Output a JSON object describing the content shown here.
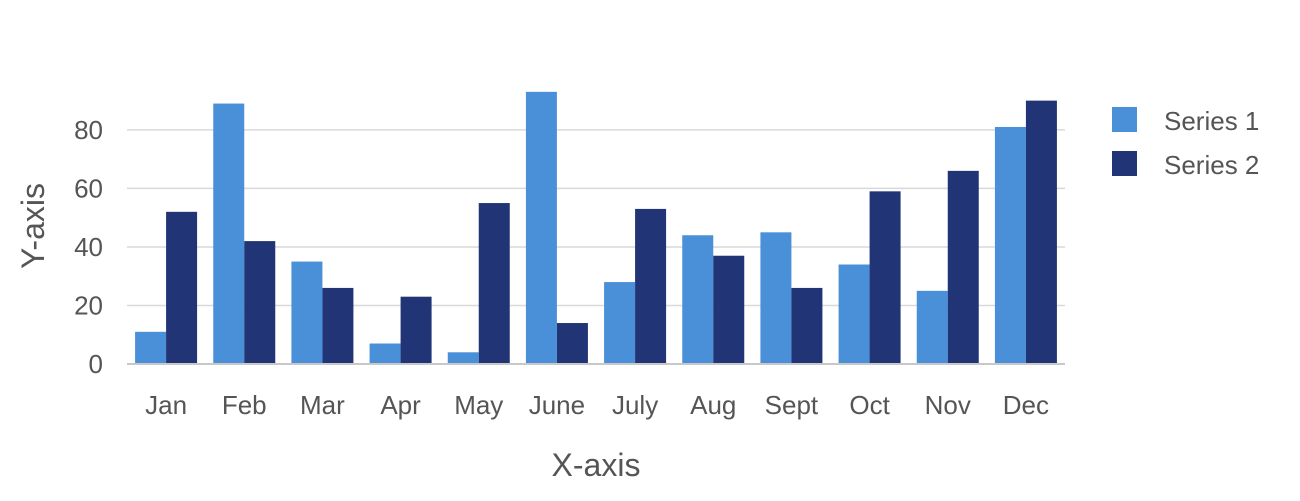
{
  "chart_data": {
    "type": "bar",
    "title": "",
    "xlabel": "X-axis",
    "ylabel": "Y-axis",
    "categories": [
      "Jan",
      "Feb",
      "Mar",
      "Apr",
      "May",
      "June",
      "July",
      "Aug",
      "Sept",
      "Oct",
      "Nov",
      "Dec"
    ],
    "series": [
      {
        "name": "Series 1",
        "color": "#4A90D9",
        "values": [
          11,
          89,
          35,
          7,
          4,
          93,
          28,
          44,
          45,
          34,
          25,
          81
        ]
      },
      {
        "name": "Series 2",
        "color": "#213475",
        "values": [
          52,
          42,
          26,
          23,
          55,
          14,
          53,
          37,
          26,
          59,
          66,
          90
        ]
      }
    ],
    "ylim": [
      0,
      95
    ],
    "yticks": [
      0,
      20,
      40,
      60,
      80
    ],
    "grid": true,
    "legend_position": "top-right"
  }
}
